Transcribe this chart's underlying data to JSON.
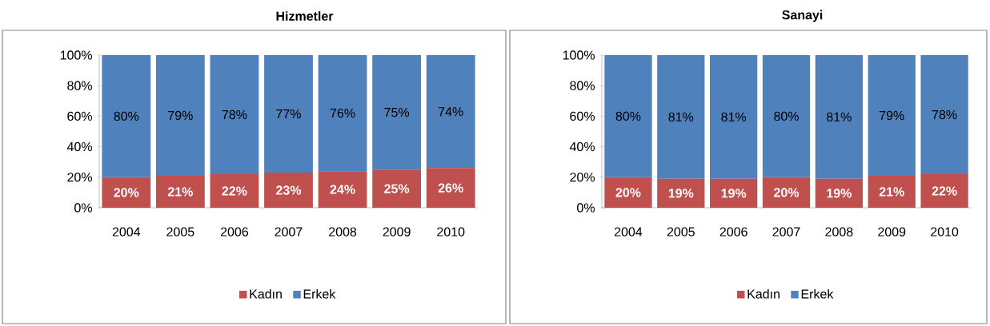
{
  "chart_data": [
    {
      "type": "bar",
      "title": "Hizmetler",
      "stacked": true,
      "legend": "bottom",
      "categories": [
        "2004",
        "2005",
        "2006",
        "2007",
        "2008",
        "2009",
        "2010"
      ],
      "series": [
        {
          "name": "Kadın",
          "color": "#c0504d",
          "values": [
            20,
            21,
            22,
            23,
            24,
            25,
            26
          ],
          "value_labels": [
            "20%",
            "21%",
            "22%",
            "23%",
            "24%",
            "25%",
            "26%"
          ]
        },
        {
          "name": "Erkek",
          "color": "#4f81bd",
          "values": [
            80,
            79,
            78,
            77,
            76,
            75,
            74
          ],
          "value_labels": [
            "80%",
            "79%",
            "78%",
            "77%",
            "76%",
            "75%",
            "74%"
          ]
        }
      ],
      "ylim": [
        0,
        100
      ],
      "yticks": [
        {
          "value": 0,
          "label": "0%"
        },
        {
          "value": 20,
          "label": "20%"
        },
        {
          "value": 40,
          "label": "40%"
        },
        {
          "value": 60,
          "label": "60%"
        },
        {
          "value": 80,
          "label": "80%"
        },
        {
          "value": 100,
          "label": "100%"
        }
      ]
    },
    {
      "type": "bar",
      "title": "Sanayi",
      "stacked": true,
      "legend": "bottom",
      "categories": [
        "2004",
        "2005",
        "2006",
        "2007",
        "2008",
        "2009",
        "2010"
      ],
      "series": [
        {
          "name": "Kadın",
          "color": "#c0504d",
          "values": [
            20,
            19,
            19,
            20,
            19,
            21,
            22
          ],
          "value_labels": [
            "20%",
            "19%",
            "19%",
            "20%",
            "19%",
            "21%",
            "22%"
          ]
        },
        {
          "name": "Erkek",
          "color": "#4f81bd",
          "values": [
            80,
            81,
            81,
            80,
            81,
            79,
            78
          ],
          "value_labels": [
            "80%",
            "81%",
            "81%",
            "80%",
            "81%",
            "79%",
            "78%"
          ]
        }
      ],
      "ylim": [
        0,
        100
      ],
      "yticks": [
        {
          "value": 0,
          "label": "0%"
        },
        {
          "value": 20,
          "label": "20%"
        },
        {
          "value": 40,
          "label": "40%"
        },
        {
          "value": 60,
          "label": "60%"
        },
        {
          "value": 80,
          "label": "80%"
        },
        {
          "value": 100,
          "label": "100%"
        }
      ]
    }
  ]
}
